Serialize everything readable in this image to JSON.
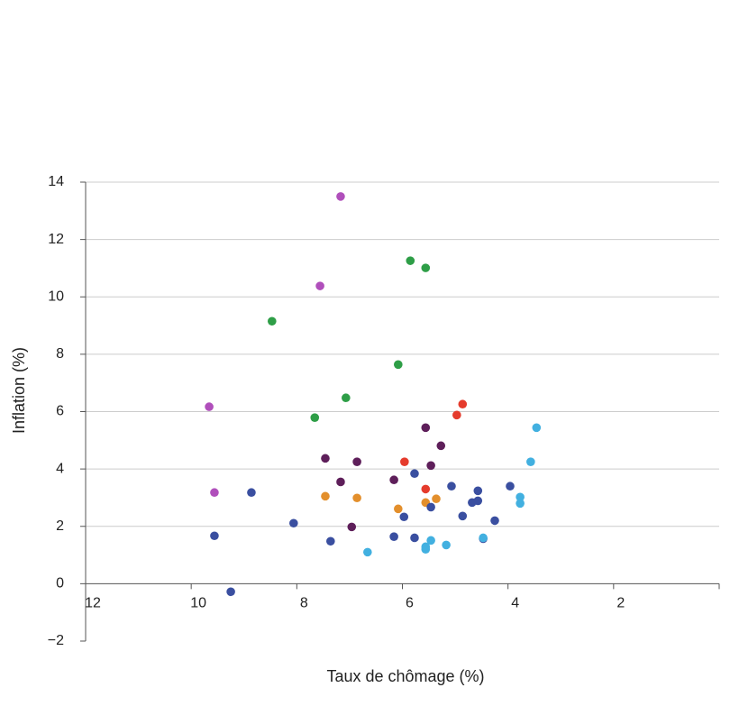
{
  "chart_data": {
    "type": "scatter",
    "x_label": "Taux de chômage (%)",
    "y_label": "Inflation (%)",
    "xlim": [
      12,
      0
    ],
    "ylim": [
      -2,
      14
    ],
    "xticks": [
      12,
      10,
      8,
      6,
      4,
      2
    ],
    "yticks": [
      {
        "value": -2,
        "label": "−2"
      },
      0,
      2,
      4,
      6,
      8,
      10,
      12,
      14
    ],
    "grid": true,
    "series": [
      {
        "color": "#b04fbb",
        "x": [
          7.17,
          7.56,
          9.66,
          9.56
        ],
        "y": [
          13.5,
          10.38,
          6.17,
          3.18
        ]
      },
      {
        "color": "#2e9e47",
        "x": [
          5.85,
          5.56,
          8.47,
          6.08,
          7.07,
          7.66
        ],
        "y": [
          11.26,
          11.01,
          9.15,
          7.64,
          6.48,
          5.79
        ]
      },
      {
        "color": "#e53b2c",
        "x": [
          4.86,
          4.97,
          5.96,
          5.56
        ],
        "y": [
          6.26,
          5.88,
          4.25,
          3.3
        ]
      },
      {
        "color": "#5e1f5a",
        "x": [
          5.56,
          5.27,
          7.46,
          6.86,
          5.46,
          7.17,
          6.16,
          6.96
        ],
        "y": [
          5.44,
          4.81,
          4.37,
          4.25,
          4.12,
          3.55,
          3.62,
          1.98
        ]
      },
      {
        "color": "#e38f2c",
        "x": [
          7.46,
          6.86,
          5.36,
          5.56,
          6.08
        ],
        "y": [
          3.05,
          2.99,
          2.96,
          2.83,
          2.61
        ]
      },
      {
        "color": "#3a4fa0",
        "x": [
          8.86,
          5.77,
          5.07,
          4.57,
          3.96,
          4.57,
          4.68,
          5.46,
          5.97,
          4.86,
          4.25,
          8.06,
          9.56,
          6.16,
          5.77,
          7.36,
          4.47,
          9.25
        ],
        "y": [
          3.18,
          3.84,
          3.4,
          3.24,
          3.4,
          2.89,
          2.83,
          2.67,
          2.33,
          2.36,
          2.2,
          2.11,
          1.67,
          1.64,
          1.6,
          1.48,
          1.57,
          -0.28
        ]
      },
      {
        "color": "#42b0e0",
        "x": [
          3.46,
          3.57,
          3.77,
          3.77,
          4.47,
          5.46,
          5.17,
          5.56,
          5.56,
          6.66
        ],
        "y": [
          5.44,
          4.25,
          3.02,
          2.8,
          1.6,
          1.51,
          1.35,
          1.29,
          1.2,
          1.1
        ]
      }
    ]
  }
}
